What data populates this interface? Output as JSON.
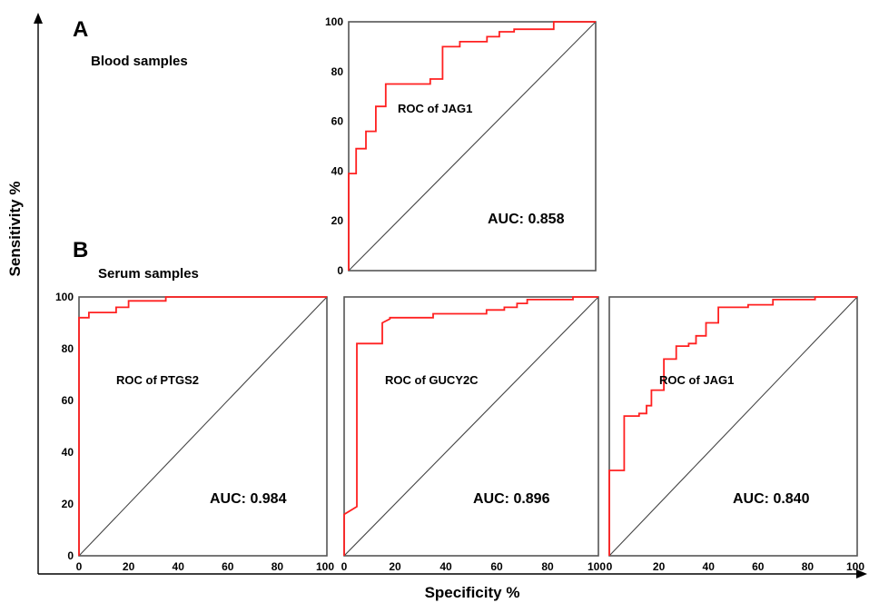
{
  "figure": {
    "x_axis_title": "Specificity %",
    "y_axis_title": "Sensitivity %",
    "colors": {
      "curve": "#ff2020",
      "frame": "#555555",
      "diagonal": "#444444"
    }
  },
  "panel_a": {
    "letter": "A",
    "group": "Blood samples"
  },
  "panel_b": {
    "letter": "B",
    "group": "Serum samples"
  },
  "chart_data": [
    {
      "type": "line",
      "title": "ROC of JAG1",
      "annotation": "AUC: 0.858",
      "panel": "A",
      "group": "Blood samples",
      "xlim": [
        0,
        100
      ],
      "ylim": [
        0,
        100
      ],
      "y_ticks": [
        "0",
        "20",
        "40",
        "60",
        "80",
        "100"
      ],
      "x_ticks": [],
      "diagonal": true,
      "curve": {
        "x": [
          0,
          0,
          3,
          3,
          7,
          7,
          11,
          11,
          15,
          15,
          33,
          33,
          38,
          38,
          45,
          45,
          56,
          56,
          61,
          61,
          67,
          67,
          83,
          83,
          100
        ],
        "y": [
          0,
          39,
          39,
          49,
          49,
          56,
          56,
          66,
          66,
          75,
          75,
          77,
          77,
          90,
          90,
          92,
          92,
          94,
          94,
          96,
          96,
          97,
          97,
          100,
          100
        ]
      }
    },
    {
      "type": "line",
      "title": "ROC of PTGS2",
      "annotation": "AUC: 0.984",
      "panel": "B",
      "group": "Serum samples",
      "xlim": [
        0,
        100
      ],
      "ylim": [
        0,
        100
      ],
      "x_ticks": [
        "0",
        "20",
        "40",
        "60",
        "80",
        "100"
      ],
      "y_ticks": [
        "0",
        "20",
        "40",
        "60",
        "80",
        "100"
      ],
      "diagonal": true,
      "curve": {
        "x": [
          0,
          0,
          4,
          4,
          15,
          15,
          20,
          20,
          35,
          35,
          100
        ],
        "y": [
          0,
          92,
          92,
          94,
          94,
          96,
          96,
          98.5,
          98.5,
          100,
          100
        ]
      }
    },
    {
      "type": "line",
      "title": "ROC of GUCY2C",
      "annotation": "AUC: 0.896",
      "panel": "B",
      "group": "Serum samples",
      "xlim": [
        0,
        100
      ],
      "ylim": [
        0,
        100
      ],
      "x_ticks": [
        "0",
        "20",
        "40",
        "60",
        "80",
        "100"
      ],
      "y_ticks": [],
      "diagonal": true,
      "curve": {
        "x": [
          0,
          0,
          5,
          5,
          15,
          15,
          18,
          18,
          35,
          35,
          56,
          56,
          63,
          63,
          68,
          68,
          72,
          72,
          90,
          90,
          100
        ],
        "y": [
          0,
          16,
          19,
          82,
          82,
          90,
          91.5,
          92,
          92,
          93.5,
          93.5,
          95,
          95,
          96,
          96,
          97.5,
          97.5,
          99,
          99,
          100,
          100
        ]
      }
    },
    {
      "type": "line",
      "title": "ROC of JAG1",
      "annotation": "AUC: 0.840",
      "panel": "B",
      "group": "Serum samples",
      "xlim": [
        0,
        100
      ],
      "ylim": [
        0,
        100
      ],
      "x_ticks": [
        "0",
        "20",
        "40",
        "60",
        "80",
        "100"
      ],
      "y_ticks": [],
      "diagonal": true,
      "curve": {
        "x": [
          0,
          0,
          6,
          6,
          12,
          12,
          15,
          15,
          17,
          17,
          22,
          22,
          27,
          27,
          32,
          32,
          35,
          35,
          39,
          39,
          44,
          44,
          56,
          56,
          66,
          66,
          83,
          83,
          100
        ],
        "y": [
          0,
          33,
          33,
          54,
          54,
          55,
          55,
          58,
          58,
          64,
          64,
          76,
          76,
          81,
          81,
          82,
          82,
          85,
          85,
          90,
          90,
          96,
          96,
          97,
          97,
          99,
          99,
          100,
          100
        ]
      }
    }
  ]
}
